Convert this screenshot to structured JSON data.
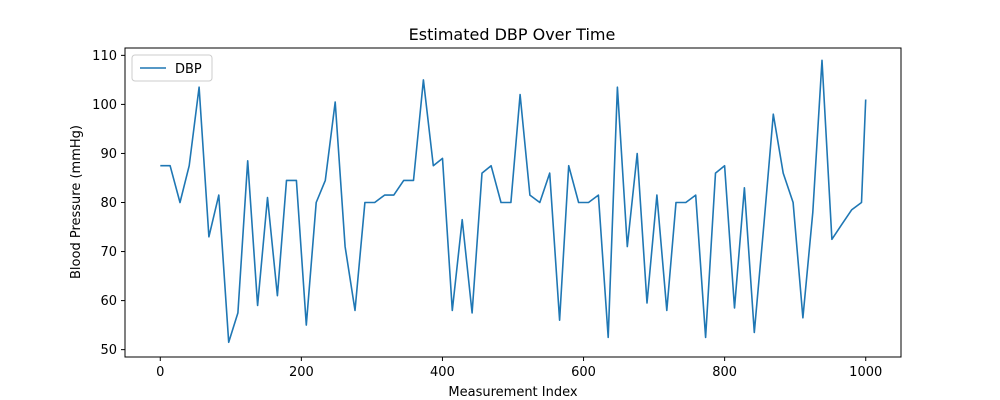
{
  "chart_data": {
    "type": "line",
    "title": "Estimated DBP Over Time",
    "xlabel": "Measurement Index",
    "ylabel": "Blood Pressure (mmHg)",
    "xlim": [
      -50,
      1050
    ],
    "ylim": [
      48.5,
      111.5
    ],
    "xticks": [
      0,
      200,
      400,
      600,
      800,
      1000
    ],
    "yticks": [
      50,
      60,
      70,
      80,
      90,
      100,
      110
    ],
    "grid": false,
    "legend": "top-left",
    "series": [
      {
        "name": "DBP",
        "color": "#1f77b4",
        "x": [
          0,
          14,
          28,
          41,
          55,
          69,
          83,
          97,
          110,
          124,
          138,
          152,
          166,
          179,
          193,
          207,
          221,
          234,
          248,
          262,
          276,
          290,
          304,
          318,
          331,
          345,
          359,
          373,
          387,
          400,
          414,
          428,
          442,
          456,
          469,
          483,
          497,
          510,
          524,
          538,
          552,
          566,
          579,
          593,
          607,
          621,
          635,
          648,
          662,
          676,
          690,
          704,
          718,
          731,
          745,
          759,
          773,
          787,
          800,
          814,
          828,
          842,
          856,
          869,
          883,
          897,
          911,
          925,
          938,
          952,
          966,
          980,
          994,
          1000
        ],
        "values": [
          87.5,
          87.5,
          80,
          87.5,
          103.5,
          73,
          81.5,
          51.5,
          57.5,
          88.5,
          59,
          81,
          61,
          84.5,
          84.5,
          55,
          80,
          84.5,
          100.5,
          71,
          58,
          80,
          80,
          81.5,
          81.5,
          84.5,
          84.5,
          105,
          87.5,
          89,
          58,
          76.5,
          57.5,
          86,
          87.5,
          80,
          80,
          102,
          81.5,
          80,
          86,
          56,
          87.5,
          80,
          80,
          81.5,
          52.5,
          103.5,
          71,
          90,
          59.5,
          81.5,
          58,
          80,
          80,
          81.5,
          52.5,
          86,
          87.5,
          58.5,
          83,
          53.5,
          76,
          98,
          86,
          80,
          56.5,
          78,
          109,
          72.5,
          75.5,
          78.5,
          80,
          101
        ]
      }
    ]
  }
}
